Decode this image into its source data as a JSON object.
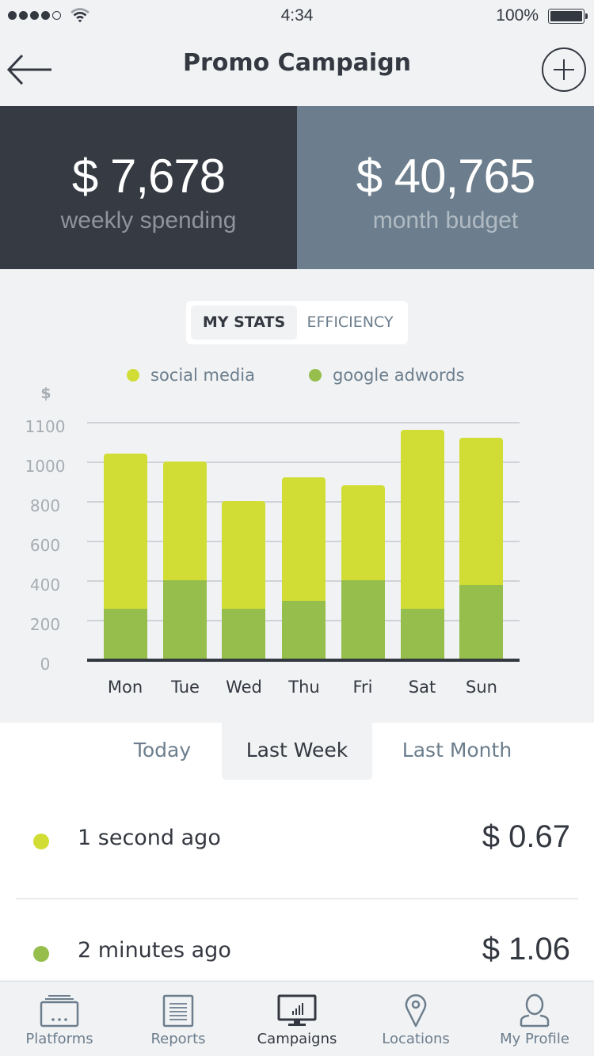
{
  "status_bar": {
    "signal_bars_filled": 4,
    "signal_bars_total": 5,
    "time": "4:34",
    "battery_percent": "100%"
  },
  "nav": {
    "title": "Promo Campaign",
    "back_icon": "arrow-left-icon",
    "add_icon": "plus-circle-icon"
  },
  "summary": {
    "weekly": {
      "value": "$ 7,678",
      "label": "weekly spending",
      "color": "#353a43"
    },
    "budget": {
      "value": "$ 40,765",
      "label": "month budget",
      "color": "#6c7e8d"
    }
  },
  "segment": {
    "options": [
      {
        "label": "MY STATS",
        "active": true
      },
      {
        "label": "EFFICIENCY",
        "active": false
      }
    ]
  },
  "legend": [
    {
      "label": "social media",
      "color": "#d1dd35"
    },
    {
      "label": "google adwords",
      "color": "#95be4c"
    }
  ],
  "chart_data": {
    "type": "bar",
    "stacked": true,
    "title": "",
    "xlabel": "",
    "ylabel": "$",
    "categories": [
      "Mon",
      "Tue",
      "Wed",
      "Thu",
      "Fri",
      "Sat",
      "Sun"
    ],
    "y_tick_labels": [
      "1100",
      "1000",
      "800",
      "600",
      "400",
      "200",
      "0"
    ],
    "ylim": [
      0,
      1200
    ],
    "grid": true,
    "legend_position": "top",
    "series": [
      {
        "name": "google adwords",
        "color": "#95be4c",
        "values": [
          256,
          400,
          256,
          296,
          400,
          256,
          376
        ]
      },
      {
        "name": "social media",
        "color": "#d1dd35",
        "values": [
          784,
          600,
          544,
          624,
          480,
          904,
          744
        ]
      }
    ],
    "totals": [
      1040,
      1000,
      800,
      920,
      880,
      1160,
      1120
    ]
  },
  "range_tabs": [
    {
      "label": "Today",
      "active": false
    },
    {
      "label": "Last Week",
      "active": true
    },
    {
      "label": "Last Month",
      "active": false
    }
  ],
  "transactions": [
    {
      "time": "1 second ago",
      "amount": "$ 0.67",
      "color": "#d1dd35"
    },
    {
      "time": "2 minutes ago",
      "amount": "$ 1.06",
      "color": "#95be4c"
    }
  ],
  "tab_bar": {
    "items": [
      {
        "label": "Platforms",
        "icon": "platforms-icon",
        "active": false
      },
      {
        "label": "Reports",
        "icon": "reports-icon",
        "active": false
      },
      {
        "label": "Campaigns",
        "icon": "campaigns-monitor-icon",
        "active": true
      },
      {
        "label": "Locations",
        "icon": "location-pin-icon",
        "active": false
      },
      {
        "label": "My Profile",
        "icon": "profile-icon",
        "active": false
      }
    ]
  }
}
